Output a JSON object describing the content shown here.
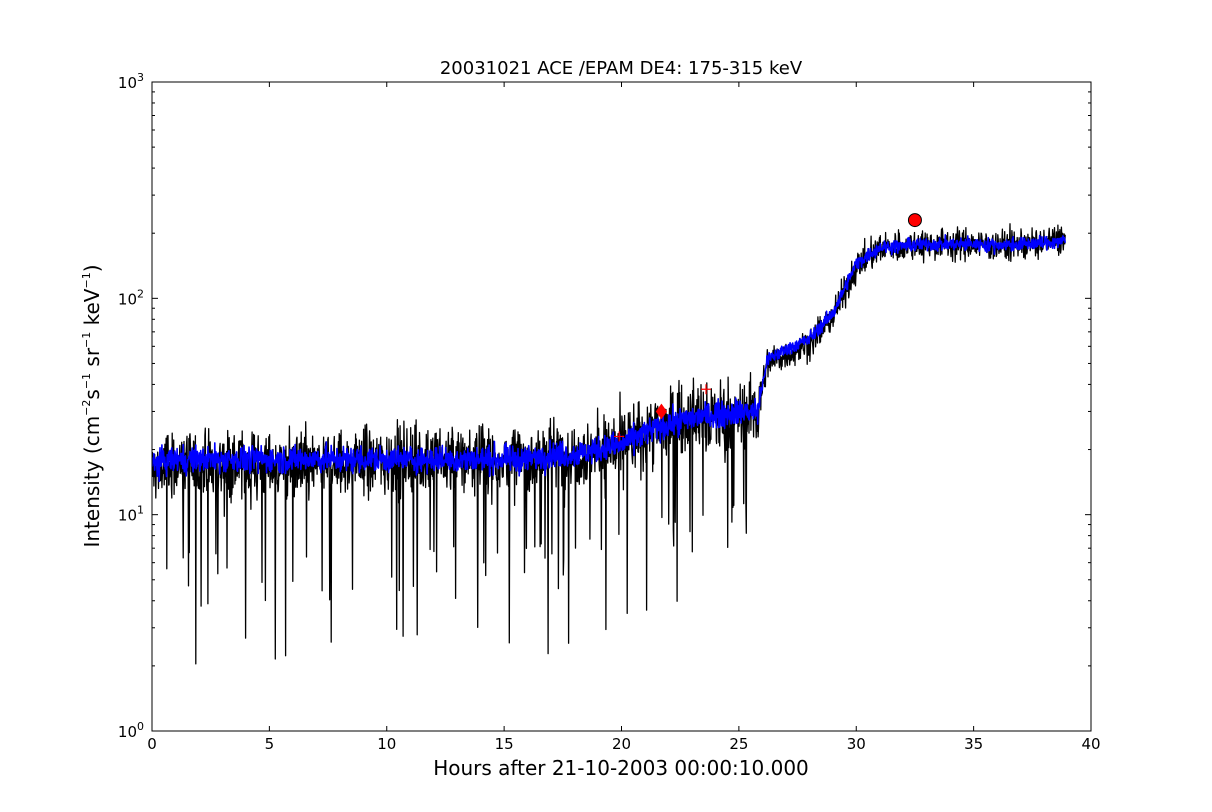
{
  "chart_data": {
    "type": "line",
    "title": "20031021 ACE /EPAM DE4: 175-315 keV",
    "xlabel": "Hours after 21-10-2003 00:00:10.000",
    "ylabel": {
      "prefix": "Intensity (cm",
      "exp1": "−2",
      "mid1": "s",
      "exp2": "−1",
      "mid2": " sr",
      "exp3": "−1",
      "mid3": " keV",
      "exp4": "−1",
      "suffix": ")"
    },
    "xlim": [
      0,
      40
    ],
    "ylim": [
      1,
      1000
    ],
    "yscale": "log",
    "grid": false,
    "x_ticks": [
      0,
      5,
      10,
      15,
      20,
      25,
      30,
      35,
      40
    ],
    "x_tick_labels": [
      "0",
      "5",
      "10",
      "15",
      "20",
      "25",
      "30",
      "35",
      "40"
    ],
    "y_ticks": [
      1,
      10,
      100,
      1000
    ],
    "y_tick_labels": [
      {
        "base": "10",
        "exp": "0"
      },
      {
        "base": "10",
        "exp": "1"
      },
      {
        "base": "10",
        "exp": "2"
      },
      {
        "base": "10",
        "exp": "3"
      }
    ],
    "series": [
      {
        "color": "#000000",
        "style": "noisy raw data",
        "x": [
          0,
          1,
          2,
          3,
          4,
          5,
          6,
          7,
          8,
          9,
          10,
          11,
          12,
          13,
          14,
          15,
          16,
          17,
          18,
          19,
          20,
          21,
          22,
          23,
          24,
          25,
          25.8,
          26.2,
          27,
          28,
          29,
          30,
          31,
          32,
          33,
          34,
          35,
          36,
          37,
          38,
          38.9
        ],
        "y": [
          16,
          17,
          17,
          17,
          17,
          17,
          17,
          17,
          17,
          18,
          18,
          18,
          18,
          18,
          18,
          18,
          18,
          19,
          19,
          20,
          21,
          24,
          26,
          28,
          28,
          29,
          30,
          50,
          55,
          62,
          82,
          140,
          170,
          175,
          178,
          178,
          178,
          175,
          178,
          180,
          190
        ]
      },
      {
        "color": "#0000ff",
        "style": "smoothed data",
        "x": [
          0,
          1,
          2,
          3,
          4,
          5,
          6,
          7,
          8,
          9,
          10,
          11,
          12,
          13,
          14,
          15,
          16,
          17,
          18,
          19,
          20,
          21,
          22,
          23,
          24,
          25,
          25.8,
          26.2,
          27,
          28,
          29,
          30,
          31,
          32,
          33,
          34,
          35,
          36,
          37,
          38,
          38.9
        ],
        "y": [
          17,
          18,
          18,
          18,
          18,
          18,
          18,
          18,
          18,
          18,
          18,
          18,
          18,
          18,
          18,
          18,
          18,
          19,
          19,
          20,
          21,
          24,
          26,
          28,
          29,
          30,
          30,
          52,
          58,
          65,
          85,
          145,
          172,
          175,
          178,
          178,
          178,
          176,
          178,
          180,
          185
        ]
      }
    ],
    "markers": [
      {
        "shape": "plus",
        "x": 19.9,
        "y": 23,
        "color": "#ff0000"
      },
      {
        "shape": "diamond",
        "x": 21.7,
        "y": 30,
        "color": "#ff0000"
      },
      {
        "shape": "plus",
        "x": 23.6,
        "y": 38,
        "color": "#ff0000"
      },
      {
        "shape": "circle",
        "x": 32.5,
        "y": 230,
        "color": "#ff0000"
      }
    ]
  }
}
